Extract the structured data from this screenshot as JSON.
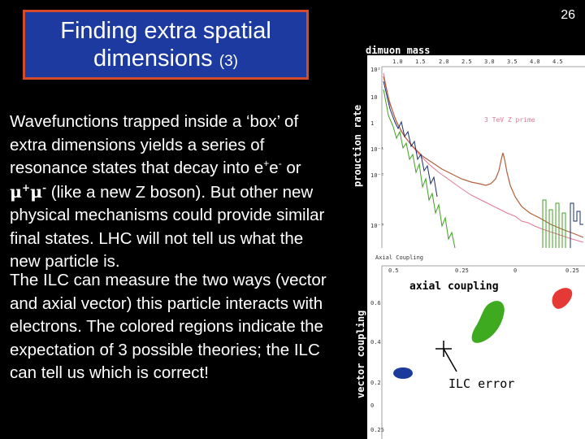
{
  "slide": {
    "number": "26",
    "title_line1": "Finding extra spatial",
    "title_line2": "dimensions",
    "title_suffix": "(3)"
  },
  "body": {
    "para1_a": "Wavefunctions trapped inside a ‘box’ of extra dimensions yields a series of resonance states that decay into e",
    "para1_plus1": "+",
    "para1_e": "e",
    "para1_minus1": "-",
    "para1_or": " or ",
    "para1_mu1": "μ",
    "para1_plus2": "+",
    "para1_mu2": "μ",
    "para1_minus2": "-",
    "para1_b": " (like a new Z boson). But other new physical mechanisms could provide similar final states. LHC will not tell us what the new particle is.",
    "para2": "The ILC can measure the two ways (vector and axial vector) this particle interacts with electrons. The colored regions indicate the expectation of 3 possible theories; the ILC can tell us which is correct!"
  },
  "top_plot": {
    "title": "dimuon mass",
    "ylabel": "prouction rate",
    "curve_label": "3 TeV Z prime",
    "x_ticks": [
      "1.0",
      "1.5",
      "2.0",
      "2.5",
      "3.0",
      "3.5",
      "4.0",
      "4.5"
    ],
    "y_ticks": [
      "10²",
      "10",
      "1",
      "10⁻¹",
      "10⁻²",
      "10⁻³"
    ]
  },
  "bottom_plot": {
    "header": "Axial Coupling",
    "xlabel": "axial coupling",
    "ylabel": "vector coupling",
    "x_ticks": [
      "0.5",
      "0.25",
      "0",
      "0.25"
    ],
    "y_ticks": [
      "0.6",
      "0.4",
      "0.2",
      "0",
      "0.25"
    ],
    "error_label": "ILC error",
    "regions": [
      {
        "color": "#e53935"
      },
      {
        "color": "#3daa1f"
      },
      {
        "color": "#1a3a9c"
      }
    ]
  },
  "colors": {
    "title_bg": "#1c3aa0",
    "title_border": "#d44a2a",
    "background": "#000000"
  }
}
